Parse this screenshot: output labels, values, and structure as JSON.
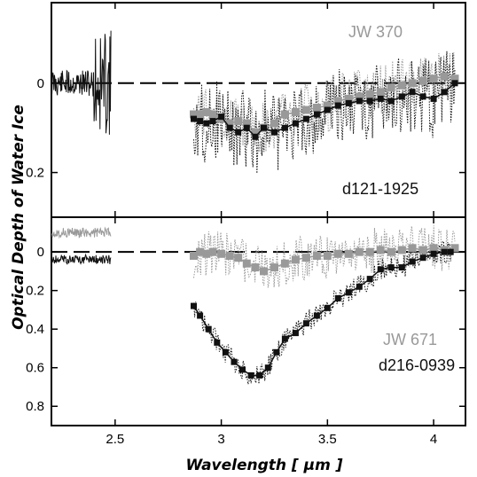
{
  "chart_data": [
    {
      "panel": "top",
      "type": "line",
      "xlim": [
        2.2,
        4.15
      ],
      "ylim": [
        0.3,
        -0.18
      ],
      "y_inverted": true,
      "yticks": [
        0,
        0.2
      ],
      "ytick_labels": [
        "0",
        "0.2"
      ],
      "reference_line": {
        "y": 0,
        "style": "dashed"
      },
      "annotations": {
        "gray": "JW 370",
        "black": "d121-1925"
      },
      "series": [
        {
          "key": "gray",
          "color": "#999999",
          "x": [
            2.87,
            2.9,
            2.93,
            2.96,
            3.0,
            3.04,
            3.08,
            3.12,
            3.16,
            3.2,
            3.25,
            3.3,
            3.35,
            3.4,
            3.45,
            3.5,
            3.55,
            3.6,
            3.65,
            3.7,
            3.75,
            3.8,
            3.85,
            3.9,
            3.95,
            4.0,
            4.05,
            4.1
          ],
          "y": [
            0.07,
            0.07,
            0.065,
            0.07,
            0.08,
            0.09,
            0.085,
            0.09,
            0.11,
            0.1,
            0.09,
            0.07,
            0.065,
            0.06,
            0.055,
            0.05,
            0.04,
            0.035,
            0.03,
            0.025,
            0.02,
            0.01,
            0.005,
            0.0,
            -0.005,
            -0.01,
            -0.015,
            -0.01
          ]
        },
        {
          "key": "black",
          "color": "#111111",
          "x": [
            2.87,
            2.9,
            2.93,
            2.96,
            3.0,
            3.04,
            3.08,
            3.12,
            3.16,
            3.2,
            3.25,
            3.3,
            3.35,
            3.4,
            3.45,
            3.5,
            3.55,
            3.6,
            3.65,
            3.7,
            3.75,
            3.8,
            3.85,
            3.9,
            3.95,
            4.0,
            4.05,
            4.1
          ],
          "y": [
            0.08,
            0.085,
            0.09,
            0.085,
            0.075,
            0.1,
            0.11,
            0.1,
            0.12,
            0.1,
            0.11,
            0.1,
            0.09,
            0.08,
            0.07,
            0.06,
            0.05,
            0.045,
            0.04,
            0.04,
            0.035,
            0.04,
            0.03,
            0.02,
            0.03,
            0.035,
            0.02,
            0.0
          ]
        }
      ],
      "series_low": {
        "key": "black",
        "color": "#111111",
        "x_range": [
          2.2,
          2.48
        ],
        "y_level": 0.0
      }
    },
    {
      "panel": "bottom",
      "type": "line",
      "xlim": [
        2.2,
        4.15
      ],
      "ylim": [
        0.9,
        -0.18
      ],
      "y_inverted": true,
      "yticks": [
        0,
        0.2,
        0.4,
        0.6,
        0.8
      ],
      "ytick_labels": [
        "0",
        "0.2",
        "0.4",
        "0.6",
        "0.8"
      ],
      "reference_line": {
        "y": 0,
        "style": "dashed"
      },
      "annotations": {
        "gray": "JW 671",
        "black": "d216-0939"
      },
      "series": [
        {
          "key": "gray",
          "color": "#999999",
          "x": [
            2.87,
            2.9,
            2.93,
            2.96,
            3.0,
            3.04,
            3.08,
            3.12,
            3.16,
            3.2,
            3.25,
            3.3,
            3.35,
            3.4,
            3.45,
            3.5,
            3.55,
            3.6,
            3.65,
            3.7,
            3.75,
            3.8,
            3.85,
            3.9,
            3.95,
            4.0,
            4.05,
            4.1
          ],
          "y": [
            0.02,
            0.0,
            0.01,
            0.0,
            0.01,
            0.02,
            0.03,
            0.06,
            0.08,
            0.1,
            0.08,
            0.06,
            0.04,
            0.03,
            0.02,
            0.02,
            0.01,
            0.01,
            0.0,
            0.0,
            -0.01,
            0.0,
            -0.01,
            -0.02,
            -0.01,
            -0.02,
            -0.01,
            -0.02
          ]
        },
        {
          "key": "black",
          "color": "#111111",
          "x": [
            2.87,
            2.9,
            2.94,
            2.98,
            3.02,
            3.06,
            3.1,
            3.14,
            3.18,
            3.22,
            3.26,
            3.3,
            3.35,
            3.4,
            3.45,
            3.5,
            3.55,
            3.6,
            3.65,
            3.7,
            3.75,
            3.8,
            3.85,
            3.9,
            3.95,
            4.0,
            4.05,
            4.08
          ],
          "y": [
            0.28,
            0.33,
            0.4,
            0.47,
            0.52,
            0.57,
            0.61,
            0.64,
            0.64,
            0.6,
            0.52,
            0.45,
            0.42,
            0.37,
            0.33,
            0.29,
            0.24,
            0.21,
            0.18,
            0.14,
            0.09,
            0.08,
            0.08,
            0.05,
            0.03,
            0.01,
            0.0,
            0.0
          ]
        }
      ],
      "series_low": [
        {
          "key": "gray",
          "color": "#999999",
          "x_range": [
            2.2,
            2.48
          ],
          "y_level": -0.1
        },
        {
          "key": "black",
          "color": "#111111",
          "x_range": [
            2.2,
            2.48
          ],
          "y_level": 0.04
        }
      ]
    }
  ],
  "x_axis": {
    "ticks": [
      2.5,
      3,
      3.5,
      4
    ],
    "tick_labels": [
      "2.5",
      "3",
      "3.5",
      "4"
    ],
    "label": "Wavelength [ μm ]"
  },
  "y_axis_label": "Optical Depth of Water Ice",
  "colors": {
    "gray": "#999999",
    "black": "#111111",
    "axes": "#000000"
  }
}
